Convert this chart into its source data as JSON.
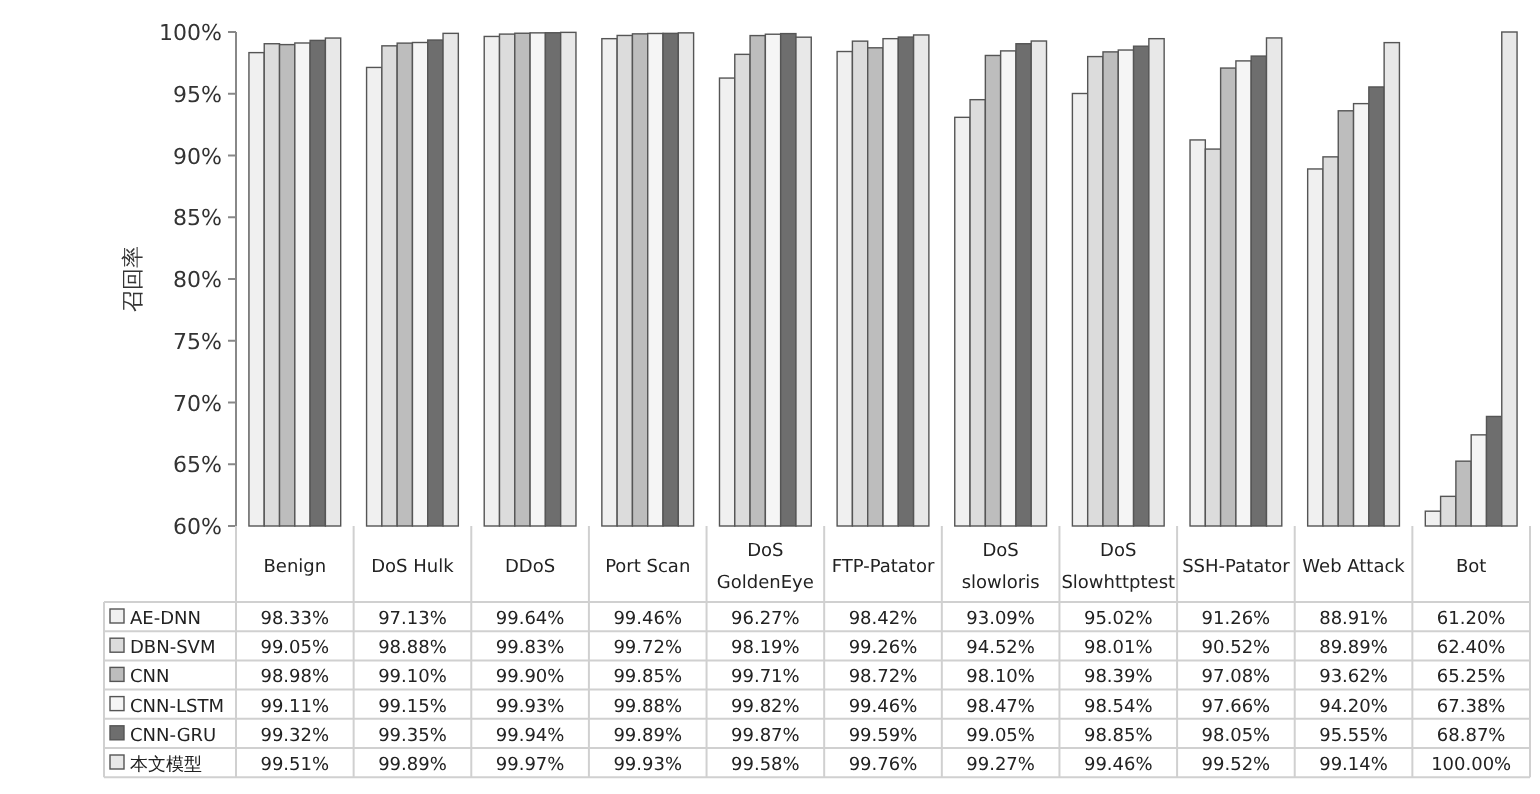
{
  "chart_data": {
    "type": "bar",
    "ylabel": "召回率",
    "categories": [
      "Benign",
      "DoS Hulk",
      "DDoS",
      "Port Scan",
      "DoS GoldenEye",
      "FTP-Patator",
      "DoS slowloris",
      "DoS Slowhttptest",
      "SSH-Patator",
      "Web Attack",
      "Bot"
    ],
    "series": [
      {
        "name": "AE-DNN",
        "color": "#f0f0f0",
        "values": [
          98.33,
          97.13,
          99.64,
          99.46,
          96.27,
          98.42,
          93.09,
          95.02,
          91.26,
          88.91,
          61.2
        ],
        "value_labels": [
          "98.33%",
          "97.13%",
          "99.64%",
          "99.46%",
          "96.27%",
          "98.42%",
          "93.09%",
          "95.02%",
          "91.26%",
          "88.91%",
          "61.20%"
        ]
      },
      {
        "name": "DBN-SVM",
        "color": "#dcdcdc",
        "values": [
          99.05,
          98.88,
          99.83,
          99.72,
          98.19,
          99.26,
          94.52,
          98.01,
          90.52,
          89.89,
          62.4
        ],
        "value_labels": [
          "99.05%",
          "98.88%",
          "99.83%",
          "99.72%",
          "98.19%",
          "99.26%",
          "94.52%",
          "98.01%",
          "90.52%",
          "89.89%",
          "62.40%"
        ]
      },
      {
        "name": "CNN",
        "color": "#bdbdbd",
        "values": [
          98.98,
          99.1,
          99.9,
          99.85,
          99.71,
          98.72,
          98.1,
          98.39,
          97.08,
          93.62,
          65.25
        ],
        "value_labels": [
          "98.98%",
          "99.10%",
          "99.90%",
          "99.85%",
          "99.71%",
          "98.72%",
          "98.10%",
          "98.39%",
          "97.08%",
          "93.62%",
          "65.25%"
        ]
      },
      {
        "name": "CNN-LSTM",
        "color": "#f5f5f5",
        "values": [
          99.11,
          99.15,
          99.93,
          99.88,
          99.82,
          99.46,
          98.47,
          98.54,
          97.66,
          94.2,
          67.38
        ],
        "value_labels": [
          "99.11%",
          "99.15%",
          "99.93%",
          "99.88%",
          "99.82%",
          "99.46%",
          "98.47%",
          "98.54%",
          "97.66%",
          "94.20%",
          "67.38%"
        ]
      },
      {
        "name": "CNN-GRU",
        "color": "#6e6e6e",
        "values": [
          99.32,
          99.35,
          99.94,
          99.89,
          99.87,
          99.59,
          99.05,
          98.85,
          98.05,
          95.55,
          68.87
        ],
        "value_labels": [
          "99.32%",
          "99.35%",
          "99.94%",
          "99.89%",
          "99.87%",
          "99.59%",
          "99.05%",
          "98.85%",
          "98.05%",
          "95.55%",
          "68.87%"
        ]
      },
      {
        "name": "本文模型",
        "color": "#e8e8e8",
        "values": [
          99.51,
          99.89,
          99.97,
          99.93,
          99.58,
          99.76,
          99.27,
          99.46,
          99.52,
          99.14,
          100.0
        ],
        "value_labels": [
          "99.51%",
          "99.89%",
          "99.97%",
          "99.93%",
          "99.58%",
          "99.76%",
          "99.27%",
          "99.46%",
          "99.52%",
          "99.14%",
          "100.00%"
        ]
      }
    ],
    "ylim": [
      60,
      100
    ],
    "yticks": [
      {
        "value": 60,
        "label": "60%"
      },
      {
        "value": 65,
        "label": "65%"
      },
      {
        "value": 70,
        "label": "70%"
      },
      {
        "value": 75,
        "label": "75%"
      },
      {
        "value": 80,
        "label": "80%"
      },
      {
        "value": 85,
        "label": "85%"
      },
      {
        "value": 90,
        "label": "90%"
      },
      {
        "value": 95,
        "label": "95%"
      },
      {
        "value": 100,
        "label": "100%"
      }
    ],
    "legend": "bottom"
  }
}
